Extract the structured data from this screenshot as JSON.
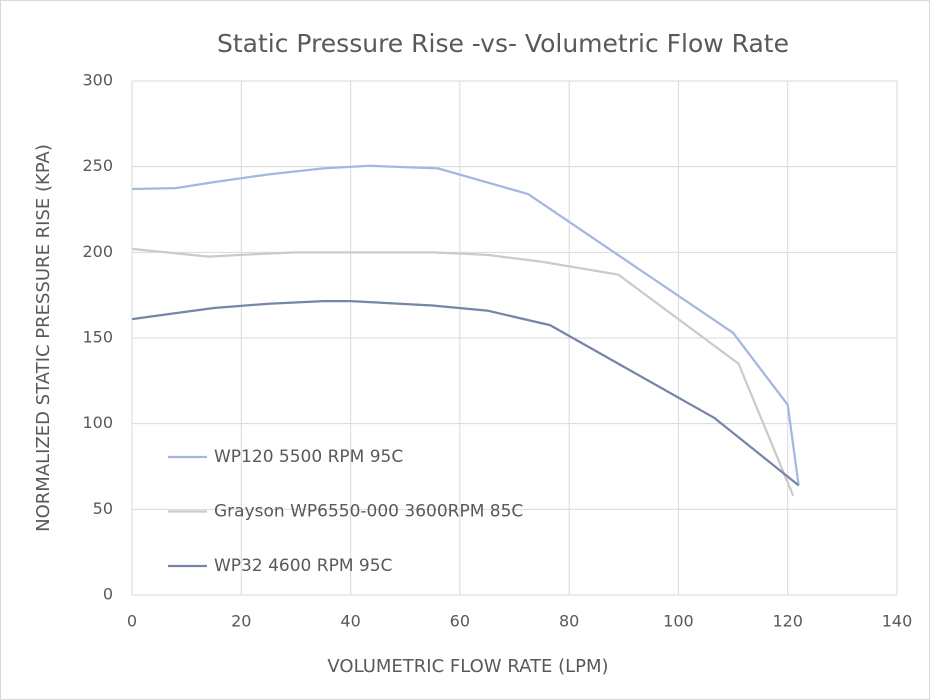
{
  "chart_data": {
    "type": "line",
    "title": "Static Pressure Rise -vs- Volumetric Flow Rate",
    "x_label": "VOLUMETRIC FLOW RATE (LPM)",
    "y_label": "NORMALIZED STATIC PRESSURE RISE (KPA)",
    "xlim": [
      0,
      140
    ],
    "xticks": [
      0,
      20,
      40,
      60,
      80,
      100,
      120,
      140
    ],
    "ylim": [
      0,
      300
    ],
    "yticks": [
      0,
      50,
      100,
      150,
      200,
      250,
      300
    ],
    "grid": true,
    "legend": "lower-left",
    "series": [
      {
        "name": "WP120 5500 RPM 95C",
        "color": "#a4b7e0",
        "x": [
          0,
          8,
          15,
          25,
          35,
          43.5,
          56,
          72.5,
          110,
          120,
          122
        ],
        "values": [
          237,
          237.5,
          241,
          245.5,
          249,
          250.5,
          249,
          234,
          153,
          111,
          64
        ]
      },
      {
        "name": "Grayson WP6550-000 3600RPM 85C",
        "color": "#cbcbcb",
        "x": [
          0,
          14,
          20,
          30,
          40,
          55,
          65,
          75,
          89,
          111,
          121
        ],
        "values": [
          202,
          197.5,
          198.5,
          200,
          200,
          200,
          198.5,
          194.5,
          187,
          135,
          58
        ]
      },
      {
        "name": "WP32 4600 RPM 95C",
        "color": "#7586a6",
        "x": [
          0,
          8,
          15,
          25,
          35,
          40,
          55,
          65,
          76.5,
          106.5,
          122
        ],
        "values": [
          161,
          164.5,
          167.5,
          170,
          171.5,
          171.5,
          169,
          166,
          157.5,
          103.5,
          64
        ]
      }
    ]
  }
}
